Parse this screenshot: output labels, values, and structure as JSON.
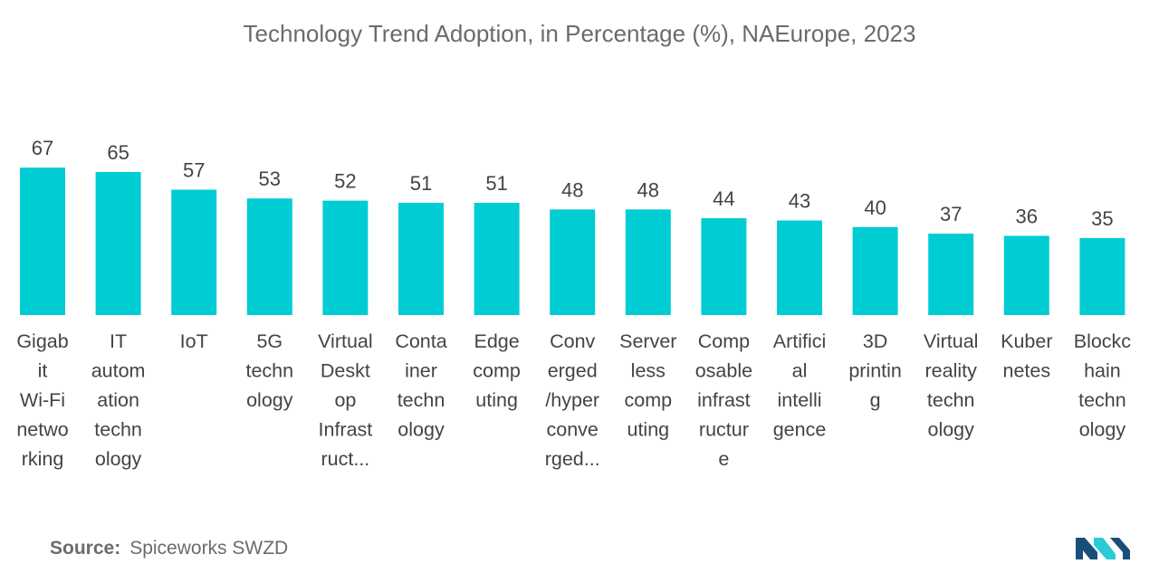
{
  "title": "Technology Trend Adoption, in Percentage (%), NAEurope, 2023",
  "source": {
    "label": "Source:",
    "value": "Spiceworks SWZD"
  },
  "colors": {
    "bar": "#00CDD3",
    "logo_dark": "#1A4E7A",
    "logo_light": "#2ACBD6"
  },
  "chart_data": {
    "type": "bar",
    "title": "Technology Trend Adoption, in Percentage (%), NAEurope, 2023",
    "xlabel": "",
    "ylabel": "",
    "ylim": [
      0,
      100
    ],
    "grid": false,
    "categories": [
      "Gigabit Wi-Fi networking",
      "IT automation technology",
      "IoT",
      "5G technology",
      "Virtual Desktop Infrastruct...",
      "Container technology",
      "Edge computing",
      "Converged/hyperconverged...",
      "Serverless computing",
      "Composable infrastructure",
      "Artificial intelligence",
      "3D printing",
      "Virtual reality technology",
      "Kubernetes",
      "Blockchain technology"
    ],
    "category_lines": [
      [
        "Gigab",
        "it",
        "Wi-Fi",
        "netwo",
        "rking"
      ],
      [
        "IT",
        "autom",
        "ation",
        "techn",
        "ology"
      ],
      [
        "IoT"
      ],
      [
        "5G",
        "techn",
        "ology"
      ],
      [
        "Virtual",
        "Deskt",
        "op",
        "Infrast",
        "ruct..."
      ],
      [
        "Conta",
        "iner",
        "techn",
        "ology"
      ],
      [
        "Edge",
        "comp",
        "uting"
      ],
      [
        "Conv",
        "erged",
        "/hyper",
        "conve",
        "rged..."
      ],
      [
        "Server",
        "less",
        "comp",
        "uting"
      ],
      [
        "Comp",
        "osable",
        "infrast",
        "ructur",
        "e"
      ],
      [
        "Artifici",
        "al",
        "intelli",
        "gence"
      ],
      [
        "3D",
        "printin",
        "g"
      ],
      [
        "Virtual",
        "reality",
        "techn",
        "ology"
      ],
      [
        "Kuber",
        "netes"
      ],
      [
        "Blockc",
        "hain",
        "techn",
        "ology"
      ]
    ],
    "values": [
      67,
      65,
      57,
      53,
      52,
      51,
      51,
      48,
      48,
      44,
      43,
      40,
      37,
      36,
      35
    ]
  }
}
